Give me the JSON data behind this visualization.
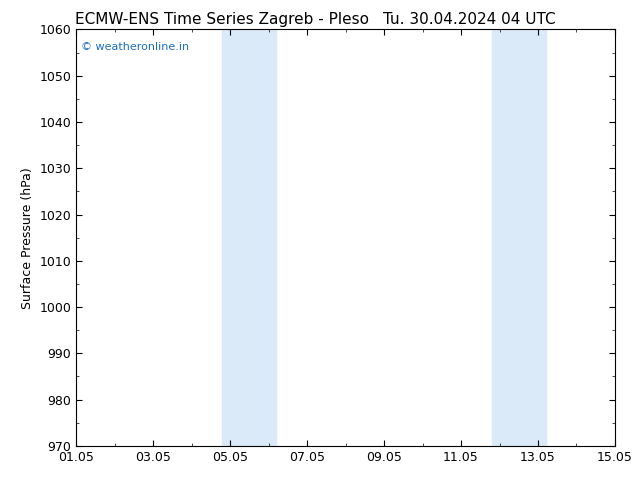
{
  "title_left": "ECMW-ENS Time Series Zagreb - Pleso",
  "title_right": "Tu. 30.04.2024 04 UTC",
  "ylabel": "Surface Pressure (hPa)",
  "xlim": [
    0,
    14
  ],
  "ylim": [
    970,
    1060
  ],
  "yticks": [
    970,
    980,
    990,
    1000,
    1010,
    1020,
    1030,
    1040,
    1050,
    1060
  ],
  "xtick_labels": [
    "01.05",
    "03.05",
    "05.05",
    "07.05",
    "09.05",
    "11.05",
    "13.05",
    "15.05"
  ],
  "xtick_positions": [
    0,
    2,
    4,
    6,
    8,
    10,
    12,
    14
  ],
  "shaded_bands": [
    {
      "xmin": 3.8,
      "xmax": 5.2
    },
    {
      "xmin": 10.8,
      "xmax": 12.2
    }
  ],
  "shade_color": "#daeaf8",
  "background_color": "#ffffff",
  "watermark_text": "© weatheronline.in",
  "watermark_color": "#1a6fc4",
  "title_fontsize": 11,
  "tick_fontsize": 9,
  "ylabel_fontsize": 9
}
